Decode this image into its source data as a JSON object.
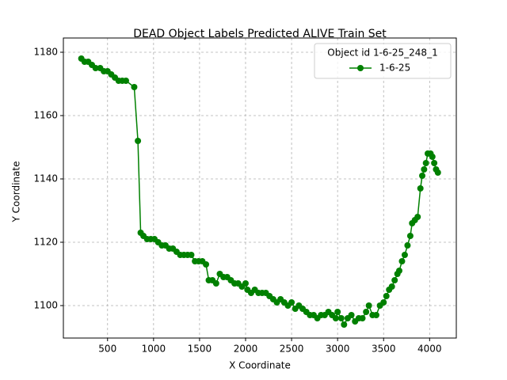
{
  "chart_data": {
    "type": "line",
    "title": "DEAD Object Labels Predicted ALIVE Train Set",
    "x_label": "X Coordinate",
    "y_label": "Y Coordinate",
    "legend_title": "Object id 1-6-25_248_1",
    "legend_position": "upper right",
    "grid": true,
    "xlim": [
      20,
      4290
    ],
    "ylim": [
      1089.75,
      1184.5
    ],
    "xticks": [
      500,
      1000,
      1500,
      2000,
      2500,
      3000,
      3500,
      4000
    ],
    "yticks": [
      1100,
      1120,
      1140,
      1160,
      1180
    ],
    "x": [
      215,
      250,
      290,
      330,
      370,
      420,
      460,
      500,
      540,
      580,
      620,
      660,
      700,
      790,
      830,
      860,
      890,
      930,
      970,
      1010,
      1050,
      1090,
      1130,
      1170,
      1210,
      1250,
      1290,
      1330,
      1370,
      1410,
      1450,
      1490,
      1530,
      1570,
      1600,
      1640,
      1680,
      1720,
      1760,
      1800,
      1840,
      1880,
      1920,
      1960,
      2000,
      2020,
      2060,
      2100,
      2140,
      2180,
      2220,
      2260,
      2300,
      2340,
      2380,
      2420,
      2460,
      2500,
      2540,
      2580,
      2620,
      2660,
      2700,
      2740,
      2780,
      2820,
      2860,
      2900,
      2940,
      2980,
      3000,
      3040,
      3070,
      3110,
      3150,
      3190,
      3230,
      3270,
      3310,
      3340,
      3380,
      3420,
      3460,
      3500,
      3530,
      3560,
      3590,
      3620,
      3650,
      3670,
      3700,
      3730,
      3760,
      3790,
      3810,
      3840,
      3870,
      3900,
      3920,
      3940,
      3960,
      3980,
      4010,
      4030,
      4050,
      4070,
      4090
    ],
    "series": [
      {
        "name": "1-6-25",
        "color": "green",
        "values": [
          1178,
          1177,
          1177,
          1176,
          1175,
          1175,
          1174,
          1174,
          1173,
          1172,
          1171,
          1171,
          1171,
          1169,
          1152,
          1123,
          1122,
          1121,
          1121,
          1121,
          1120,
          1119,
          1119,
          1118,
          1118,
          1117,
          1116,
          1116,
          1116,
          1116,
          1114,
          1114,
          1114,
          1113,
          1108,
          1108,
          1107,
          1110,
          1109,
          1109,
          1108,
          1107,
          1107,
          1106,
          1107,
          1105,
          1104,
          1105,
          1104,
          1104,
          1104,
          1103,
          1102,
          1101,
          1102,
          1101,
          1100,
          1101,
          1099,
          1100,
          1099,
          1098,
          1097,
          1097,
          1096,
          1097,
          1097,
          1098,
          1097,
          1096,
          1098,
          1096,
          1094,
          1096,
          1097,
          1095,
          1096,
          1096,
          1098,
          1100,
          1097,
          1097,
          1100,
          1101,
          1103,
          1105,
          1106,
          1108,
          1110,
          1111,
          1114,
          1116,
          1119,
          1122,
          1126,
          1127,
          1128,
          1137,
          1141,
          1143,
          1145,
          1148,
          1148,
          1147,
          1145,
          1143,
          1142
        ]
      }
    ]
  }
}
